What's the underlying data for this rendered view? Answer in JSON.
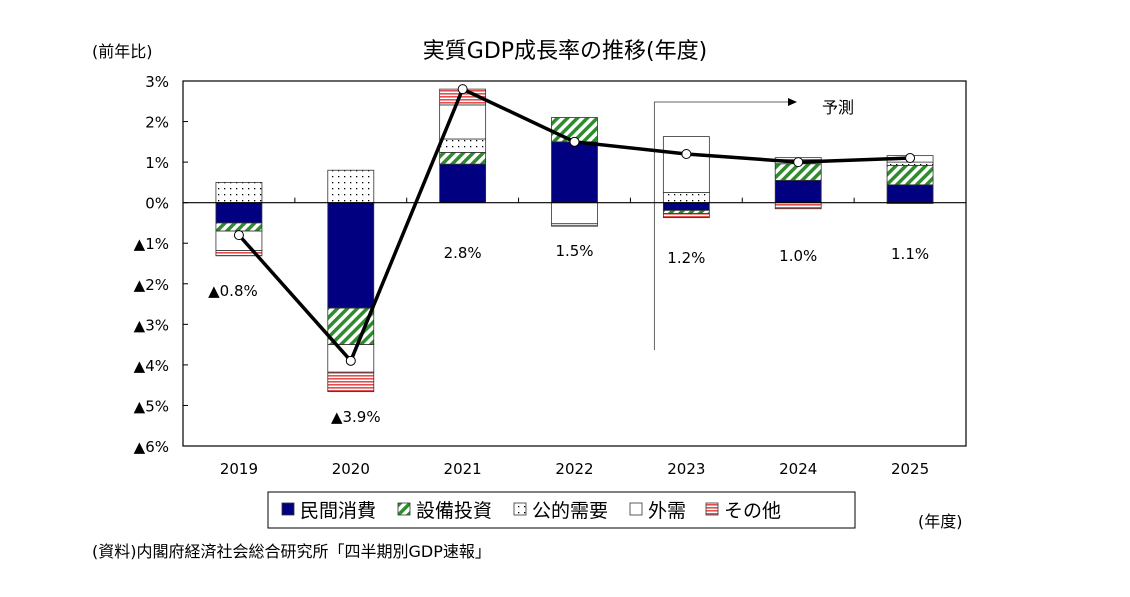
{
  "chart_data": {
    "type": "bar",
    "stacked": true,
    "title": "実質GDP成長率の推移(年度)",
    "ylabel": "(前年比)",
    "xlabel": "(年度)",
    "source": "(資料)内閣府経済社会総合研究所「四半期別GDP速報」",
    "forecast_label": "予測",
    "forecast_start": "2023",
    "categories": [
      "2019",
      "2020",
      "2021",
      "2022",
      "2023",
      "2024",
      "2025"
    ],
    "ylim": [
      -6,
      3
    ],
    "yticks": [
      3,
      2,
      1,
      0,
      -1,
      -2,
      -3,
      -4,
      -5,
      -6
    ],
    "ytick_labels": [
      "3%",
      "2%",
      "1%",
      "0%",
      "▲1%",
      "▲2%",
      "▲3%",
      "▲4%",
      "▲5%",
      "▲6%"
    ],
    "grid": false,
    "legend_position": "bottom",
    "series": [
      {
        "name": "民間消費",
        "color": "#000080",
        "pattern": "solid",
        "values": [
          -0.5,
          -2.6,
          0.95,
          1.5,
          -0.19,
          0.55,
          0.44
        ]
      },
      {
        "name": "設備投資",
        "color": "#2e8b2e",
        "pattern": "diagonal",
        "values": [
          -0.2,
          -0.9,
          0.29,
          0.6,
          -0.08,
          0.41,
          0.48
        ]
      },
      {
        "name": "公的需要",
        "color": "#000000",
        "pattern": "dots",
        "values": [
          0.5,
          0.8,
          0.33,
          0.0,
          0.25,
          0.1,
          0.08
        ]
      },
      {
        "name": "外需",
        "color": "#ffffff",
        "pattern": "blank",
        "values": [
          -0.48,
          -0.68,
          0.84,
          -0.52,
          1.38,
          0.05,
          0.16
        ]
      },
      {
        "name": "その他",
        "color": "#e05050",
        "pattern": "stripes",
        "values": [
          -0.13,
          -0.48,
          0.39,
          -0.06,
          -0.1,
          -0.15,
          -0.02
        ]
      }
    ],
    "line": {
      "values": [
        -0.8,
        -3.9,
        2.8,
        1.5,
        1.2,
        1.0,
        1.1
      ],
      "labels": [
        "▲0.8%",
        "▲3.9%",
        "2.8%",
        "1.5%",
        "1.2%",
        "1.0%",
        "1.1%"
      ]
    }
  }
}
